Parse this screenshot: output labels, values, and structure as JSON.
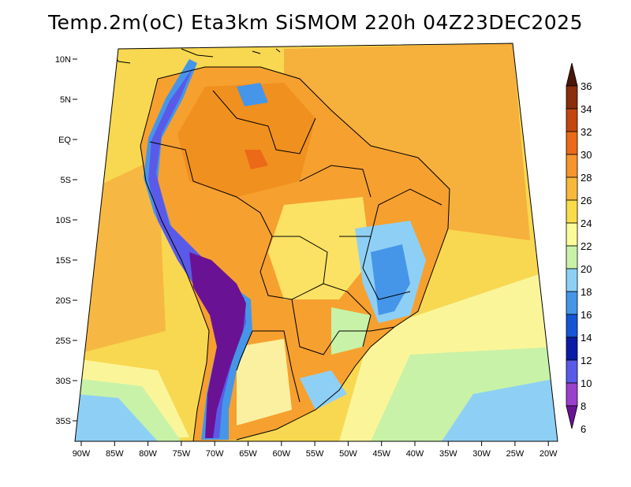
{
  "title": "Temp.2m(oC) Eta3km SiSMOM 220h 04Z23DEC2025",
  "lat_labels": [
    "10N",
    "5N",
    "EQ",
    "5S",
    "10S",
    "15S",
    "20S",
    "25S",
    "30S",
    "35S"
  ],
  "lon_labels": [
    "90W",
    "85W",
    "80W",
    "75W",
    "70W",
    "65W",
    "60W",
    "55W",
    "50W",
    "45W",
    "40W",
    "35W",
    "30W",
    "25W",
    "20W"
  ],
  "colorbar": {
    "labels": [
      "36",
      "34",
      "32",
      "30",
      "28",
      "26",
      "24",
      "22",
      "20",
      "18",
      "16",
      "14",
      "12",
      "10",
      "8",
      "6"
    ],
    "colors": [
      "#4a1608",
      "#8b2e0c",
      "#c2460e",
      "#ea6a18",
      "#f6952c",
      "#f8b83c",
      "#fadc4a",
      "#fbfb9a",
      "#c8f2a8",
      "#8ed0f5",
      "#4596e8",
      "#1455d6",
      "#0a1ba6",
      "#5a5ae8",
      "#9b40cc",
      "#6a1294"
    ]
  }
}
